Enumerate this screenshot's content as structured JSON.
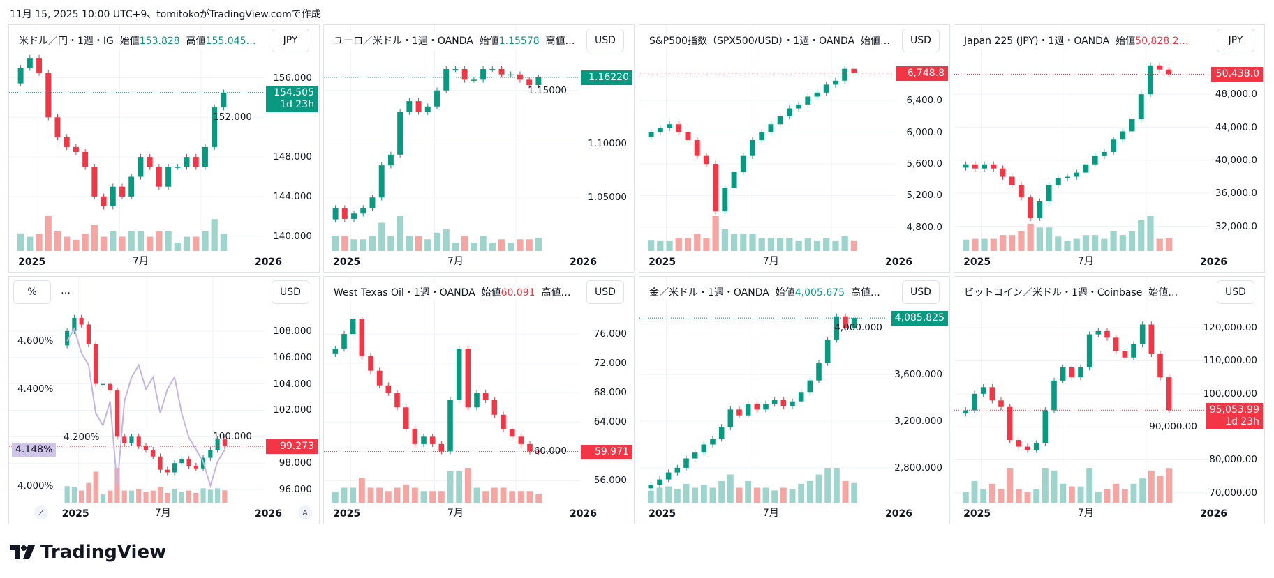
{
  "caption": "11月 15, 2025 10:00 UTC+9、tomitokoがTradingView.comで作成",
  "logo": "TradingView",
  "colors": {
    "up": "#089981",
    "down": "#f23645",
    "up_vol": "#9dd5cc",
    "down_vol": "#f5a6a3",
    "line": "#c5b5e3",
    "line_label": "#d1c4e9"
  },
  "chart_data": [
    {
      "type": "candlestick",
      "header": [
        {
          "t": "米ドル／円・1週・IG  始値"
        },
        {
          "t": "153.828",
          "c": "up"
        },
        {
          "t": "  高値"
        },
        {
          "t": "155.045…",
          "c": "up"
        }
      ],
      "currency": "JPY",
      "ylim": [
        138.5,
        158.5
      ],
      "yticks": [
        "140.000",
        "144.000",
        "148.000",
        "152.000",
        "156.000"
      ],
      "ytick_values": [
        140,
        144,
        148,
        152,
        156
      ],
      "xticks": [
        "2025",
        "7月",
        "2026"
      ],
      "close": [
        157,
        158,
        156.5,
        152,
        150,
        149,
        148.5,
        147,
        144,
        143,
        145,
        144,
        146,
        148,
        147,
        145,
        147,
        147,
        148,
        147,
        149,
        153,
        154.5
      ],
      "last": {
        "value": "154.505",
        "extra": "1d 23h",
        "c": "up"
      }
    },
    {
      "type": "candlestick",
      "header": [
        {
          "t": "ユーロ／米ドル・1週・OANDA  始値"
        },
        {
          "t": "1.15578",
          "c": "up"
        },
        {
          "t": "  高値…"
        }
      ],
      "currency": "USD",
      "ylim": [
        1.0,
        1.185
      ],
      "yticks": [
        "1.05000",
        "1.10000",
        "1.15000"
      ],
      "ytick_values": [
        1.05,
        1.1,
        1.15
      ],
      "xticks": [
        "2025",
        "7月",
        "2026"
      ],
      "close": [
        1.04,
        1.03,
        1.035,
        1.04,
        1.05,
        1.08,
        1.09,
        1.13,
        1.14,
        1.13,
        1.135,
        1.15,
        1.17,
        1.17,
        1.16,
        1.16,
        1.17,
        1.17,
        1.165,
        1.165,
        1.16,
        1.155,
        1.1622
      ],
      "last": {
        "value": "1.16220",
        "c": "up"
      }
    },
    {
      "type": "candlestick",
      "header": [
        {
          "t": "S&P500指数（SPX500/USD）・1週・OANDA  始値…"
        }
      ],
      "currency": "USD",
      "ylim": [
        4500,
        7000
      ],
      "yticks": [
        "4,800.0",
        "5,200.0",
        "5,600.0",
        "6,000.0",
        "6,400.0"
      ],
      "ytick_values": [
        4800,
        5200,
        5600,
        6000,
        6400
      ],
      "xticks": [
        "2025",
        "7月",
        "2026"
      ],
      "close": [
        6000,
        6050,
        6100,
        6000,
        5900,
        5700,
        5600,
        5000,
        5300,
        5500,
        5700,
        5900,
        6000,
        6100,
        6200,
        6300,
        6350,
        6450,
        6500,
        6600,
        6650,
        6800,
        6748.8
      ],
      "last": {
        "value": "6,748.8",
        "c": "down"
      }
    },
    {
      "type": "candlestick",
      "header": [
        {
          "t": "Japan 225 (JPY)・1週・OANDA  始値"
        },
        {
          "t": "50,828.2…",
          "c": "down"
        }
      ],
      "currency": "JPY",
      "ylim": [
        29000,
        53000
      ],
      "yticks": [
        "32,000.0",
        "36,000.0",
        "40,000.0",
        "44,000.0",
        "48,000.0"
      ],
      "ytick_values": [
        32000,
        36000,
        40000,
        44000,
        48000
      ],
      "xticks": [
        "2025",
        "7月",
        "2026"
      ],
      "close": [
        39500,
        39000,
        39500,
        39000,
        38000,
        37000,
        35500,
        33000,
        35000,
        37000,
        37800,
        38000,
        38500,
        39500,
        40500,
        41000,
        42500,
        43500,
        45000,
        48000,
        51500,
        51000,
        50438
      ],
      "last": {
        "value": "50,438.0",
        "c": "down"
      }
    },
    {
      "type": "candlestick+line",
      "header": [
        {
          "t": "…"
        }
      ],
      "left_unit": "%",
      "currency": "USD",
      "ylim": [
        95,
        110
      ],
      "yticks": [
        "96.000",
        "98.000",
        "100.000",
        "102.000",
        "104.000",
        "106.000",
        "108.000"
      ],
      "ytick_values": [
        96,
        98,
        100,
        102,
        104,
        106,
        108
      ],
      "left_ylim": [
        3.93,
        4.75
      ],
      "left_yticks": [
        "4.000%",
        "4.200%",
        "4.400%",
        "4.600%"
      ],
      "left_ytick_values": [
        4.0,
        4.2,
        4.4,
        4.6
      ],
      "xticks": [
        "2025",
        "7月",
        "2026"
      ],
      "close": [
        108,
        109,
        108.5,
        107,
        104,
        104,
        103.5,
        100,
        99.5,
        100,
        99.3,
        99,
        98.5,
        97.5,
        97.3,
        98,
        98.3,
        97.8,
        97.6,
        98.4,
        99,
        99.8,
        99.273
      ],
      "line": [
        4.6,
        4.65,
        4.55,
        4.5,
        4.3,
        4.25,
        4.35,
        4.0,
        4.35,
        4.45,
        4.5,
        4.4,
        4.45,
        4.3,
        4.4,
        4.45,
        4.3,
        4.2,
        4.15,
        4.1,
        4.0,
        4.1,
        4.148
      ],
      "last": {
        "value": "99.273",
        "c": "down"
      },
      "line_last": "4.148%",
      "scale_buttons": [
        "Z",
        "A"
      ]
    },
    {
      "type": "candlestick",
      "header": [
        {
          "t": "West Texas Oil・1週・OANDA  始値"
        },
        {
          "t": "60.091",
          "c": "down"
        },
        {
          "t": "  高値…"
        }
      ],
      "currency": "USD",
      "ylim": [
        53,
        80
      ],
      "yticks": [
        "56.000",
        "60.000",
        "64.000",
        "68.000",
        "72.000",
        "76.000"
      ],
      "ytick_values": [
        56,
        60,
        64,
        68,
        72,
        76
      ],
      "xticks": [
        "2025",
        "7月",
        "2026"
      ],
      "close": [
        74,
        76,
        78,
        73,
        71,
        69,
        68,
        66,
        63,
        61,
        62,
        61,
        60,
        67,
        74,
        66,
        68,
        67,
        65,
        63,
        62,
        61,
        60,
        59.971
      ],
      "last": {
        "value": "59.971",
        "c": "down"
      }
    },
    {
      "type": "candlestick",
      "header": [
        {
          "t": "金／米ドル・1週・OANDA  始値"
        },
        {
          "t": "4,005.675",
          "c": "up"
        },
        {
          "t": "  高値…"
        }
      ],
      "currency": "USD",
      "ylim": [
        2500,
        4200
      ],
      "yticks": [
        "2,800.000",
        "3,200.000",
        "3,600.000",
        "4,000.000"
      ],
      "ytick_values": [
        2800,
        3200,
        3600,
        4000
      ],
      "xticks": [
        "2025",
        "7月",
        "2026"
      ],
      "close": [
        2650,
        2700,
        2760,
        2800,
        2880,
        2930,
        3000,
        3050,
        3150,
        3300,
        3250,
        3350,
        3300,
        3350,
        3380,
        3330,
        3370,
        3450,
        3550,
        3700,
        3900,
        4100,
        4000,
        4085.8
      ],
      "last": {
        "value": "4,085.825",
        "c": "up"
      }
    },
    {
      "type": "candlestick",
      "header": [
        {
          "t": "ビットコイン／米ドル・1週・Coinbase  始値…"
        }
      ],
      "currency": "USD",
      "ylim": [
        67000,
        127000
      ],
      "yticks": [
        "70,000.00",
        "80,000.00",
        "90,000.00",
        "100,000.00",
        "110,000.00",
        "120,000.00"
      ],
      "ytick_values": [
        70000,
        80000,
        90000,
        100000,
        110000,
        120000
      ],
      "xticks": [
        "2025",
        "7月",
        "2026"
      ],
      "close": [
        95000,
        100000,
        102000,
        98000,
        96000,
        86000,
        84000,
        83000,
        85000,
        95000,
        104000,
        108000,
        105000,
        108000,
        118000,
        119000,
        117000,
        113000,
        111000,
        115000,
        121000,
        112000,
        105000,
        95054
      ],
      "last": {
        "value": "95,053.99",
        "extra": "1d 23h",
        "c": "down"
      }
    }
  ]
}
